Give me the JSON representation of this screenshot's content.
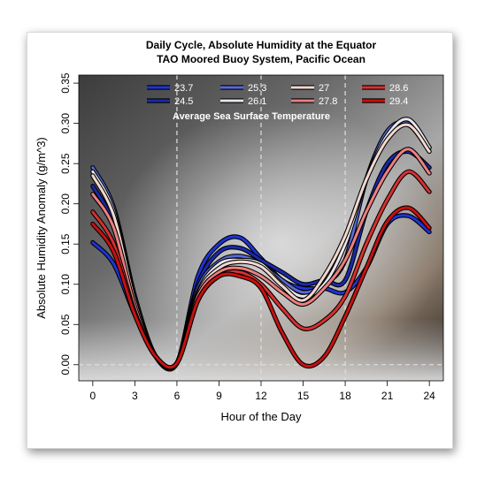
{
  "chart_data": {
    "type": "line",
    "title": "Daily Cycle, Absolute Humidity at the Equator",
    "subtitle": "TAO Moored Buoy System, Pacific Ocean",
    "xlabel": "Hour of the Day",
    "ylabel": "Absolute Humidity Anomaly (g/m^3)",
    "xlim": [
      -1,
      25
    ],
    "ylim": [
      -0.02,
      0.36
    ],
    "x_ticks": [
      0,
      3,
      6,
      9,
      12,
      15,
      18,
      21,
      24
    ],
    "y_ticks": [
      0.0,
      0.05,
      0.1,
      0.15,
      0.2,
      0.25,
      0.3,
      0.35
    ],
    "y_tick_labels": [
      "0.00",
      "0.05",
      "0.10",
      "0.15",
      "0.20",
      "0.25",
      "0.30",
      "0.35"
    ],
    "vlines": [
      6,
      12,
      18
    ],
    "hline": 0,
    "legend_title": "Average Sea Surface Temperature",
    "legend_position": "top",
    "background": "storm-cloud photograph",
    "series": [
      {
        "name": "23.7",
        "color": "#1f33d6",
        "x": [
          0,
          1.5,
          3,
          4.5,
          6,
          7.5,
          9,
          10.5,
          12,
          13.5,
          15,
          16.5,
          18,
          19.5,
          21,
          22.5,
          24
        ],
        "values": [
          0.152,
          0.125,
          0.062,
          0.01,
          0.002,
          0.11,
          0.15,
          0.158,
          0.132,
          0.105,
          0.095,
          0.095,
          0.09,
          0.12,
          0.175,
          0.185,
          0.165
        ]
      },
      {
        "name": "24.5",
        "color": "#1a2aa8",
        "x": [
          0,
          1.5,
          3,
          4.5,
          6,
          7.5,
          9,
          10.5,
          12,
          13.5,
          15,
          16.5,
          18,
          19.5,
          21,
          22.5,
          24
        ],
        "values": [
          0.222,
          0.175,
          0.08,
          0.01,
          0.002,
          0.1,
          0.14,
          0.145,
          0.13,
          0.115,
          0.1,
          0.105,
          0.105,
          0.19,
          0.25,
          0.265,
          0.245
        ]
      },
      {
        "name": "25.3",
        "color": "#5a68d8",
        "x": [
          0,
          1.5,
          3,
          4.5,
          6,
          7.5,
          9,
          10.5,
          12,
          13.5,
          15,
          16.5,
          18,
          19.5,
          21,
          22.5,
          24
        ],
        "values": [
          0.245,
          0.195,
          0.085,
          0.01,
          0.002,
          0.095,
          0.128,
          0.135,
          0.125,
          0.105,
          0.09,
          0.1,
          0.13,
          0.23,
          0.29,
          0.3,
          0.27
        ]
      },
      {
        "name": "26.1",
        "color": "#e6e6ec",
        "x": [
          0,
          1.5,
          3,
          4.5,
          6,
          7.5,
          9,
          10.5,
          12,
          13.5,
          15,
          16.5,
          18,
          19.5,
          21,
          22.5,
          24
        ],
        "values": [
          0.24,
          0.19,
          0.08,
          0.01,
          0.002,
          0.09,
          0.125,
          0.13,
          0.125,
          0.1,
          0.085,
          0.1,
          0.15,
          0.23,
          0.285,
          0.305,
          0.27
        ]
      },
      {
        "name": "27",
        "color": "#f0d8d0",
        "x": [
          0,
          1.5,
          3,
          4.5,
          6,
          7.5,
          9,
          10.5,
          12,
          13.5,
          15,
          16.5,
          18,
          19.5,
          21,
          22.5,
          24
        ],
        "values": [
          0.235,
          0.185,
          0.078,
          0.01,
          0.002,
          0.088,
          0.12,
          0.128,
          0.122,
          0.098,
          0.08,
          0.11,
          0.16,
          0.23,
          0.28,
          0.298,
          0.265
        ]
      },
      {
        "name": "27.8",
        "color": "#ec8080",
        "x": [
          0,
          1.5,
          3,
          4.5,
          6,
          7.5,
          9,
          10.5,
          12,
          13.5,
          15,
          16.5,
          18,
          19.5,
          21,
          22.5,
          24
        ],
        "values": [
          0.212,
          0.17,
          0.072,
          0.01,
          0.002,
          0.085,
          0.115,
          0.12,
          0.11,
          0.09,
          0.075,
          0.095,
          0.13,
          0.19,
          0.24,
          0.268,
          0.238
        ]
      },
      {
        "name": "28.6",
        "color": "#d83030",
        "x": [
          0,
          1.5,
          3,
          4.5,
          6,
          7.5,
          9,
          10.5,
          12,
          13.5,
          15,
          16.5,
          18,
          19.5,
          21,
          22.5,
          24
        ],
        "values": [
          0.19,
          0.15,
          0.065,
          0.01,
          0.002,
          0.08,
          0.11,
          0.115,
          0.1,
          0.07,
          0.045,
          0.055,
          0.085,
          0.15,
          0.205,
          0.24,
          0.215
        ]
      },
      {
        "name": "29.4",
        "color": "#c81010",
        "x": [
          0,
          1.5,
          3,
          4.5,
          6,
          7.5,
          9,
          10.5,
          12,
          13.5,
          15,
          16.5,
          18,
          19.5,
          21,
          22.5,
          24
        ],
        "values": [
          0.175,
          0.14,
          0.062,
          0.01,
          0.002,
          0.08,
          0.11,
          0.11,
          0.095,
          0.04,
          0.0,
          0.01,
          0.06,
          0.12,
          0.178,
          0.195,
          0.17
        ]
      }
    ]
  }
}
